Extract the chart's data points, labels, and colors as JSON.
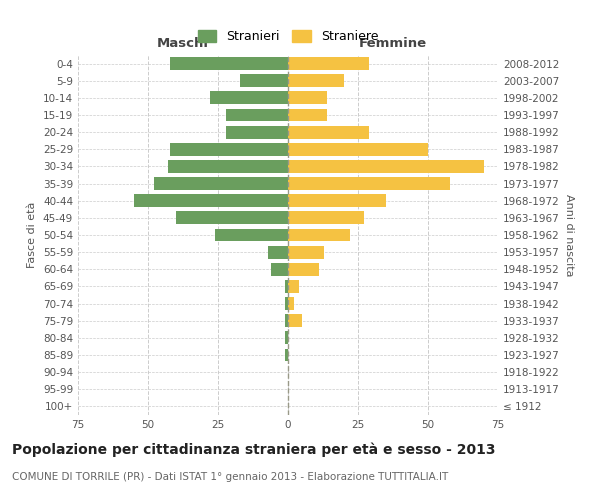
{
  "age_groups": [
    "100+",
    "95-99",
    "90-94",
    "85-89",
    "80-84",
    "75-79",
    "70-74",
    "65-69",
    "60-64",
    "55-59",
    "50-54",
    "45-49",
    "40-44",
    "35-39",
    "30-34",
    "25-29",
    "20-24",
    "15-19",
    "10-14",
    "5-9",
    "0-4"
  ],
  "birth_years": [
    "≤ 1912",
    "1913-1917",
    "1918-1922",
    "1923-1927",
    "1928-1932",
    "1933-1937",
    "1938-1942",
    "1943-1947",
    "1948-1952",
    "1953-1957",
    "1958-1962",
    "1963-1967",
    "1968-1972",
    "1973-1977",
    "1978-1982",
    "1983-1987",
    "1988-1992",
    "1993-1997",
    "1998-2002",
    "2003-2007",
    "2008-2012"
  ],
  "males": [
    0,
    0,
    0,
    1,
    1,
    1,
    1,
    1,
    6,
    7,
    26,
    40,
    55,
    48,
    43,
    42,
    22,
    22,
    28,
    17,
    42
  ],
  "females": [
    0,
    0,
    0,
    0,
    0,
    5,
    2,
    4,
    11,
    13,
    22,
    27,
    35,
    58,
    70,
    50,
    29,
    14,
    14,
    20,
    29
  ],
  "male_color": "#6a9e5e",
  "female_color": "#f5c242",
  "background_color": "#ffffff",
  "grid_color": "#cccccc",
  "xlim": 75,
  "title": "Popolazione per cittadinanza straniera per età e sesso - 2013",
  "subtitle": "COMUNE DI TORRILE (PR) - Dati ISTAT 1° gennaio 2013 - Elaborazione TUTTITALIA.IT",
  "ylabel_left": "Fasce di età",
  "ylabel_right": "Anni di nascita",
  "header_left": "Maschi",
  "header_right": "Femmine",
  "legend_male": "Stranieri",
  "legend_female": "Straniere",
  "title_fontsize": 10,
  "subtitle_fontsize": 7.5,
  "label_fontsize": 8,
  "tick_fontsize": 7.5,
  "bar_height": 0.75
}
